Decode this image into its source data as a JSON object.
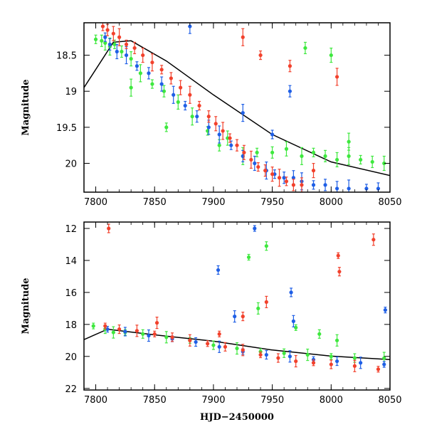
{
  "chart_data": [
    {
      "panel": "top",
      "type": "scatter",
      "xlabel": "",
      "ylabel": "Magnitude",
      "xlim": [
        7790,
        8050
      ],
      "ylim": [
        20.4,
        18.05
      ],
      "y_inverted": true,
      "x_ticks": [
        "7800",
        "7850",
        "7900",
        "7950",
        "8000",
        "8050"
      ],
      "y_ticks": [
        "18.5",
        "19",
        "19.5",
        "20"
      ],
      "colors": {
        "green": "#3ee83e",
        "blue": "#1f5fe6",
        "red": "#f2412c",
        "line": "#000000"
      },
      "model_line": {
        "x": [
          7790,
          7815,
          7830,
          7860,
          7900,
          7950,
          8000,
          8050
        ],
        "y": [
          18.95,
          18.32,
          18.3,
          18.58,
          19.05,
          19.6,
          19.98,
          20.17
        ]
      },
      "series": [
        {
          "color": "green",
          "x": [
            7800,
            7805,
            7808,
            7812,
            7816,
            7822,
            7830,
            7838,
            7848,
            7858,
            7870,
            7882,
            7895,
            7905,
            7912,
            7925,
            7937,
            7950,
            7962,
            7975,
            7985,
            7995,
            8005,
            8015,
            8025,
            8035,
            8045,
            7830,
            7860,
            7978,
            8000,
            8015
          ],
          "y": [
            18.28,
            18.3,
            18.33,
            18.38,
            18.35,
            18.45,
            18.55,
            18.75,
            18.9,
            19.0,
            19.15,
            19.35,
            19.55,
            19.75,
            19.65,
            19.9,
            19.85,
            19.85,
            19.8,
            19.9,
            19.85,
            19.9,
            19.95,
            19.9,
            19.95,
            19.98,
            20.0,
            18.95,
            19.5,
            18.4,
            18.5,
            19.7
          ]
        },
        {
          "color": "blue",
          "x": [
            7808,
            7812,
            7818,
            7826,
            7835,
            7845,
            7856,
            7866,
            7876,
            7886,
            7896,
            7905,
            7915,
            7925,
            7935,
            7945,
            7952,
            7960,
            7968,
            7975,
            7985,
            7995,
            8005,
            8015,
            8030,
            8040,
            7880,
            7925,
            7950,
            7965
          ],
          "y": [
            18.25,
            18.35,
            18.45,
            18.5,
            18.65,
            18.75,
            18.9,
            19.05,
            19.2,
            19.35,
            19.5,
            19.6,
            19.75,
            19.9,
            20.0,
            20.1,
            20.15,
            20.2,
            20.2,
            20.25,
            20.3,
            20.3,
            20.35,
            20.35,
            20.35,
            20.35,
            18.1,
            19.3,
            19.6,
            19.0
          ]
        },
        {
          "color": "red",
          "x": [
            7806,
            7810,
            7815,
            7820,
            7826,
            7833,
            7840,
            7848,
            7856,
            7864,
            7872,
            7880,
            7888,
            7896,
            7902,
            7908,
            7914,
            7920,
            7926,
            7932,
            7938,
            7944,
            7950,
            7956,
            7962,
            7968,
            7975,
            7925,
            7940,
            7965,
            7985,
            8005
          ],
          "y": [
            18.1,
            18.15,
            18.2,
            18.25,
            18.35,
            18.4,
            18.5,
            18.6,
            18.7,
            18.82,
            18.95,
            19.05,
            19.2,
            19.35,
            19.45,
            19.55,
            19.65,
            19.75,
            19.85,
            19.95,
            20.05,
            20.1,
            20.15,
            20.2,
            20.25,
            20.3,
            20.3,
            18.25,
            18.5,
            18.65,
            20.1,
            18.8
          ]
        }
      ]
    },
    {
      "panel": "bottom",
      "type": "scatter",
      "xlabel": "HJD−2450000",
      "ylabel": "Magnitude",
      "xlim": [
        7790,
        8050
      ],
      "ylim": [
        22.1,
        11.6
      ],
      "y_inverted": true,
      "x_ticks": [
        "7800",
        "7850",
        "7900",
        "7950",
        "8000",
        "8050"
      ],
      "y_ticks": [
        "12",
        "14",
        "16",
        "18",
        "20",
        "22"
      ],
      "colors": {
        "green": "#3ee83e",
        "blue": "#1f5fe6",
        "red": "#f2412c",
        "line": "#000000"
      },
      "model_line": {
        "x": [
          7790,
          7810,
          7850,
          7900,
          7950,
          8000,
          8050
        ],
        "y": [
          18.95,
          18.3,
          18.65,
          19.05,
          19.6,
          19.98,
          20.2
        ]
      },
      "series": [
        {
          "color": "green",
          "x": [
            7798,
            7808,
            7815,
            7825,
            7840,
            7860,
            7880,
            7900,
            7920,
            7940,
            7960,
            7980,
            8000,
            8020,
            8045,
            7930,
            7945,
            7938,
            7970,
            7990,
            8005
          ],
          "y": [
            18.1,
            18.3,
            18.5,
            18.5,
            18.6,
            18.8,
            19.0,
            19.3,
            19.5,
            19.7,
            19.8,
            19.9,
            20.0,
            20.1,
            20.1,
            13.8,
            13.1,
            17.0,
            18.2,
            18.6,
            19.0
          ]
        },
        {
          "color": "blue",
          "x": [
            7810,
            7825,
            7845,
            7865,
            7885,
            7905,
            7925,
            7945,
            7965,
            7985,
            8005,
            8025,
            8045,
            7904,
            7918,
            7935,
            7966,
            7968,
            8046
          ],
          "y": [
            18.3,
            18.45,
            18.7,
            18.9,
            19.1,
            19.4,
            19.7,
            19.9,
            20.0,
            20.2,
            20.3,
            20.4,
            20.5,
            14.6,
            17.5,
            12.0,
            16.0,
            17.8,
            17.1
          ]
        },
        {
          "color": "red",
          "x": [
            7808,
            7820,
            7835,
            7850,
            7865,
            7880,
            7895,
            7910,
            7925,
            7940,
            7955,
            7970,
            7985,
            8000,
            8020,
            8040,
            7811,
            7852,
            7905,
            7925,
            7945,
            8006,
            8007,
            8036
          ],
          "y": [
            18.1,
            18.3,
            18.4,
            18.6,
            18.8,
            19.0,
            19.2,
            19.4,
            19.6,
            19.9,
            20.1,
            20.3,
            20.4,
            20.5,
            20.6,
            20.8,
            12.0,
            17.9,
            18.6,
            17.5,
            16.6,
            13.7,
            14.7,
            12.7
          ]
        }
      ]
    }
  ]
}
